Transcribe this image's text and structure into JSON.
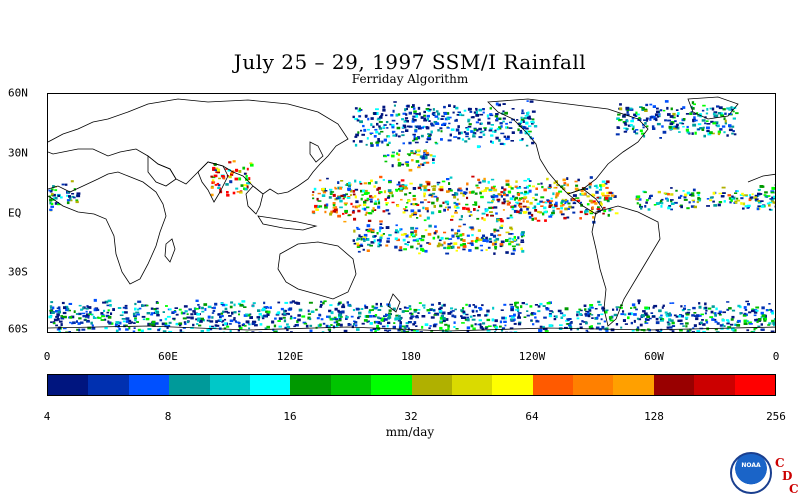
{
  "title": "July 25 – 29, 1997 SSM/I Rainfall",
  "subtitle": "Ferriday Algorithm",
  "map": {
    "lat_labels": [
      "60N",
      "30N",
      "EQ",
      "30S",
      "60S"
    ],
    "lon_labels": [
      "0",
      "60E",
      "120E",
      "180",
      "120W",
      "60W",
      "0"
    ]
  },
  "colorbar": {
    "colors": [
      "#00157f",
      "#0030b0",
      "#0050ff",
      "#009a9a",
      "#00c8c8",
      "#00ffff",
      "#009900",
      "#00c400",
      "#00ff00",
      "#b0b000",
      "#dada00",
      "#ffff00",
      "#ff5a00",
      "#ff8000",
      "#ffa000",
      "#990000",
      "#cc0000",
      "#ff0000"
    ],
    "tick_labels": [
      "4",
      "8",
      "16",
      "32",
      "64",
      "128",
      "256"
    ],
    "units": "mm/day"
  },
  "logo": {
    "noaa_text": "NOAA",
    "cdc_letters": [
      "C",
      "D",
      "C"
    ]
  },
  "rain_regions": [
    {
      "name": "ITCZ-Pacific",
      "lon_start": 130,
      "lon_end": 280,
      "lat_center": 8,
      "lat_width": 12,
      "intensity": 0.7
    },
    {
      "name": "ITCZ-Atlantic",
      "lon_start": 290,
      "lon_end": 360,
      "lat_center": 8,
      "lat_width": 6,
      "intensity": 0.5
    },
    {
      "name": "Bay-of-Bengal",
      "lon_start": 80,
      "lon_end": 100,
      "lat_center": 18,
      "lat_width": 10,
      "intensity": 0.9
    },
    {
      "name": "SPCZ",
      "lon_start": 150,
      "lon_end": 235,
      "lat_center": -12,
      "lat_width": 8,
      "intensity": 0.55
    },
    {
      "name": "Southern-Ocean",
      "lon_start": 0,
      "lon_end": 360,
      "lat_center": -52,
      "lat_width": 10,
      "intensity": 0.35
    },
    {
      "name": "North-Pacific",
      "lon_start": 150,
      "lon_end": 240,
      "lat_center": 45,
      "lat_width": 12,
      "intensity": 0.3
    },
    {
      "name": "North-Atlantic",
      "lon_start": 280,
      "lon_end": 340,
      "lat_center": 48,
      "lat_width": 10,
      "intensity": 0.4
    },
    {
      "name": "West-Africa",
      "lon_start": 350,
      "lon_end": 375,
      "lat_center": 9,
      "lat_width": 8,
      "intensity": 0.4
    },
    {
      "name": "Central-Pacific-Storm",
      "lon_start": 165,
      "lon_end": 190,
      "lat_center": 28,
      "lat_width": 6,
      "intensity": 0.6
    }
  ]
}
